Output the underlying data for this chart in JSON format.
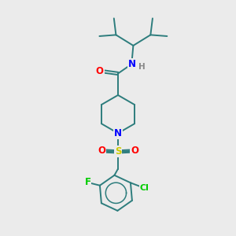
{
  "background_color": "#ebebeb",
  "bond_color": "#2d7d7d",
  "atom_colors": {
    "O": "#ff0000",
    "N": "#0000ff",
    "S": "#cccc00",
    "F": "#00cc00",
    "Cl": "#00cc00",
    "H": "#888888"
  },
  "figsize": [
    3.0,
    3.0
  ],
  "dpi": 100
}
